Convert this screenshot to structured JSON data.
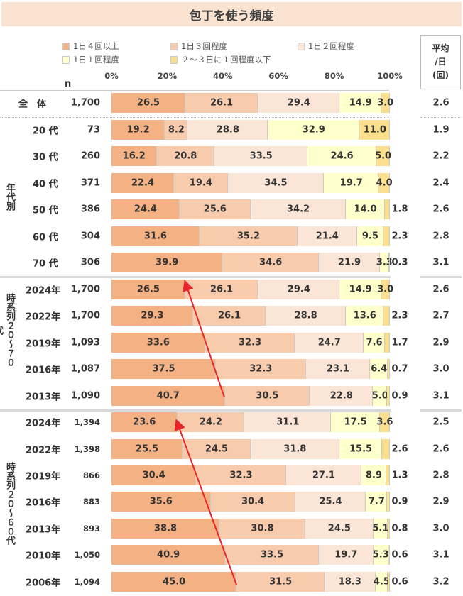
{
  "title": "包丁を使う頻度",
  "legend": [
    "1日４回以上",
    "1日３回程度",
    "1日２回程度",
    "1日１回程度",
    "２～３日に１回程度以下"
  ],
  "colors": [
    "#F4B183",
    "#F8CBAD",
    "#FBE5D6",
    "#FFFFCC",
    "#F9DF8E"
  ],
  "avg_header": [
    "平均",
    "/日",
    "(回)"
  ],
  "n_label": "n",
  "chart_data": {
    "type": "bar",
    "stacked": true,
    "orientation": "horizontal",
    "xlim": [
      0,
      100
    ],
    "x_ticks": [
      "0%",
      "20%",
      "40%",
      "60%",
      "80%",
      "100%"
    ],
    "series_names": [
      "1日４回以上",
      "1日３回程度",
      "1日２回程度",
      "1日１回程度",
      "２～３日に１回程度以下"
    ],
    "groups": [
      {
        "label": "",
        "rows": [
          {
            "label": "全　体",
            "n": "1,700",
            "values": [
              26.5,
              26.1,
              29.4,
              14.9,
              3.0
            ],
            "avg": "2.6"
          }
        ]
      },
      {
        "label": "年代別",
        "rows": [
          {
            "label": "20 代",
            "n": "73",
            "values": [
              19.2,
              8.2,
              28.8,
              32.9,
              11.0
            ],
            "avg": "1.9"
          },
          {
            "label": "30 代",
            "n": "260",
            "values": [
              16.2,
              20.8,
              33.5,
              24.6,
              5.0
            ],
            "avg": "2.2"
          },
          {
            "label": "40 代",
            "n": "371",
            "values": [
              22.4,
              19.4,
              34.5,
              19.7,
              4.0
            ],
            "avg": "2.4"
          },
          {
            "label": "50 代",
            "n": "386",
            "values": [
              24.4,
              25.6,
              34.2,
              14.0,
              1.8
            ],
            "avg": "2.6"
          },
          {
            "label": "60 代",
            "n": "304",
            "values": [
              31.6,
              35.2,
              21.4,
              9.5,
              2.3
            ],
            "avg": "2.8"
          },
          {
            "label": "70 代",
            "n": "306",
            "values": [
              39.9,
              34.6,
              21.9,
              3.3,
              0.3
            ],
            "avg": "3.1"
          }
        ]
      },
      {
        "label": "時系列２０～７０代",
        "rows": [
          {
            "label": "2024年",
            "n": "1,700",
            "values": [
              26.5,
              26.1,
              29.4,
              14.9,
              3.0
            ],
            "avg": "2.6"
          },
          {
            "label": "2022年",
            "n": "1,700",
            "values": [
              29.3,
              26.1,
              28.8,
              13.6,
              2.3
            ],
            "avg": "2.7"
          },
          {
            "label": "2019年",
            "n": "1,093",
            "values": [
              33.6,
              32.3,
              24.7,
              7.6,
              1.7
            ],
            "avg": "2.9"
          },
          {
            "label": "2016年",
            "n": "1,087",
            "values": [
              37.5,
              32.3,
              23.1,
              6.4,
              0.7
            ],
            "avg": "3.0"
          },
          {
            "label": "2013年",
            "n": "1,090",
            "values": [
              40.7,
              30.5,
              22.8,
              5.0,
              0.9
            ],
            "avg": "3.1"
          }
        ]
      },
      {
        "label": "時系列２０～６０代",
        "rows": [
          {
            "label": "2024年",
            "n": "1,394",
            "values": [
              23.6,
              24.2,
              31.1,
              17.5,
              3.6
            ],
            "avg": "2.5"
          },
          {
            "label": "2022年",
            "n": "1,398",
            "values": [
              25.5,
              24.5,
              31.8,
              15.5,
              2.6
            ],
            "avg": "2.6"
          },
          {
            "label": "2019年",
            "n": "866",
            "values": [
              30.4,
              32.3,
              27.1,
              8.9,
              1.3
            ],
            "avg": "2.8"
          },
          {
            "label": "2016年",
            "n": "883",
            "values": [
              35.6,
              30.4,
              25.4,
              7.7,
              0.9
            ],
            "avg": "2.9"
          },
          {
            "label": "2013年",
            "n": "893",
            "values": [
              38.8,
              30.8,
              24.5,
              5.1,
              0.8
            ],
            "avg": "3.0"
          },
          {
            "label": "2010年",
            "n": "1,050",
            "values": [
              40.9,
              33.5,
              19.7,
              5.3,
              0.6
            ],
            "avg": "3.1"
          },
          {
            "label": "2006年",
            "n": "1,094",
            "values": [
              45.0,
              31.5,
              18.3,
              4.5,
              0.6
            ],
            "avg": "3.2"
          }
        ]
      }
    ],
    "annotations": [
      {
        "type": "arrow",
        "color": "#E8262A",
        "from_row": "2013年 (20～70代)",
        "to_row": "2024年 (20～70代)"
      },
      {
        "type": "arrow",
        "color": "#E8262A",
        "from_row": "2006年 (20～60代)",
        "to_row": "2024年 (20～60代)"
      }
    ]
  }
}
